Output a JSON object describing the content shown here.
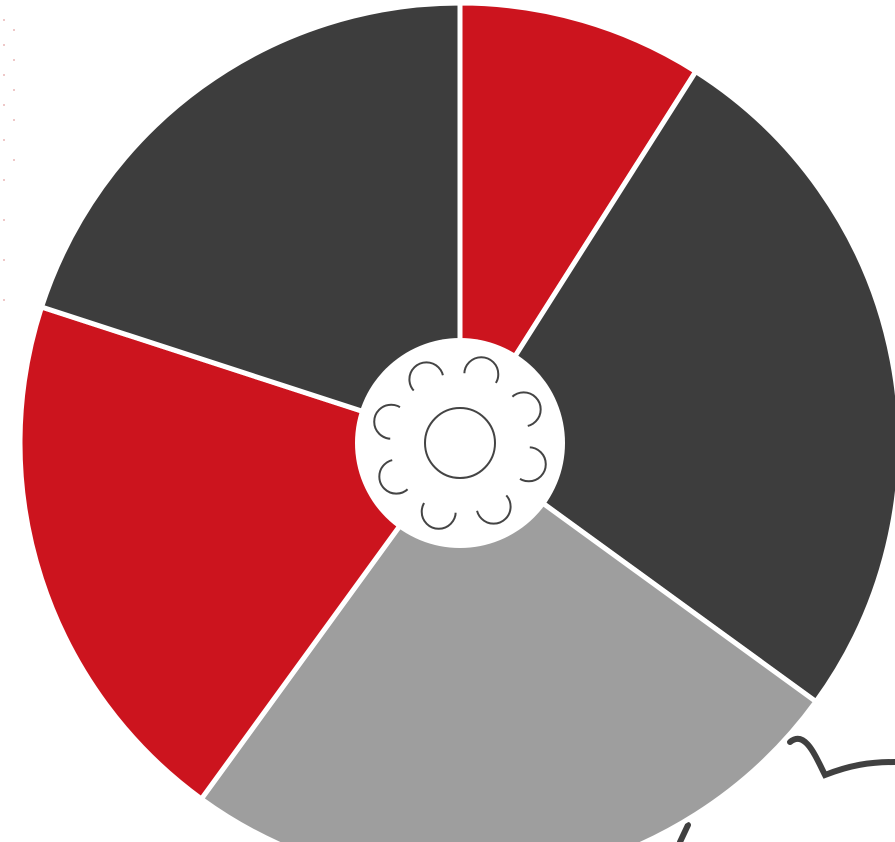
{
  "chart_data": {
    "type": "pie",
    "categories": [
      null,
      null,
      null,
      null,
      null
    ],
    "values": [
      9,
      26,
      25,
      20,
      20
    ],
    "colors": [
      "#cc141e",
      "#3d3d3d",
      "#9e9e9e",
      "#cc141e",
      "#3d3d3d"
    ]
  }
}
